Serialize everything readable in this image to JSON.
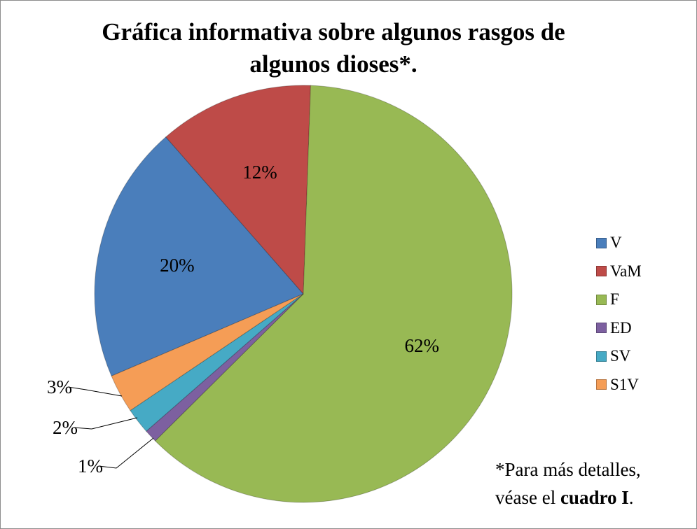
{
  "chart_data": {
    "type": "pie",
    "title_lines": [
      "Gráfica informativa sobre algunos rasgos de",
      "algunos dioses*."
    ],
    "categories": [
      "V",
      "VaM",
      "F",
      "ED",
      "SV",
      "S1V"
    ],
    "values": [
      20,
      12,
      62,
      1,
      2,
      3
    ],
    "labels": [
      "20%",
      "12%",
      "62%",
      "1%",
      "2%",
      "3%"
    ],
    "colors": [
      "#4a7ebb",
      "#be4b48",
      "#98b954",
      "#7d60a0",
      "#46aac5",
      "#f59d56"
    ],
    "legend_position": "right"
  },
  "footnote": {
    "line1": "*Para más detalles,",
    "line2_prefix": "véase el ",
    "line2_bold": "cuadro I",
    "line2_suffix": "."
  }
}
